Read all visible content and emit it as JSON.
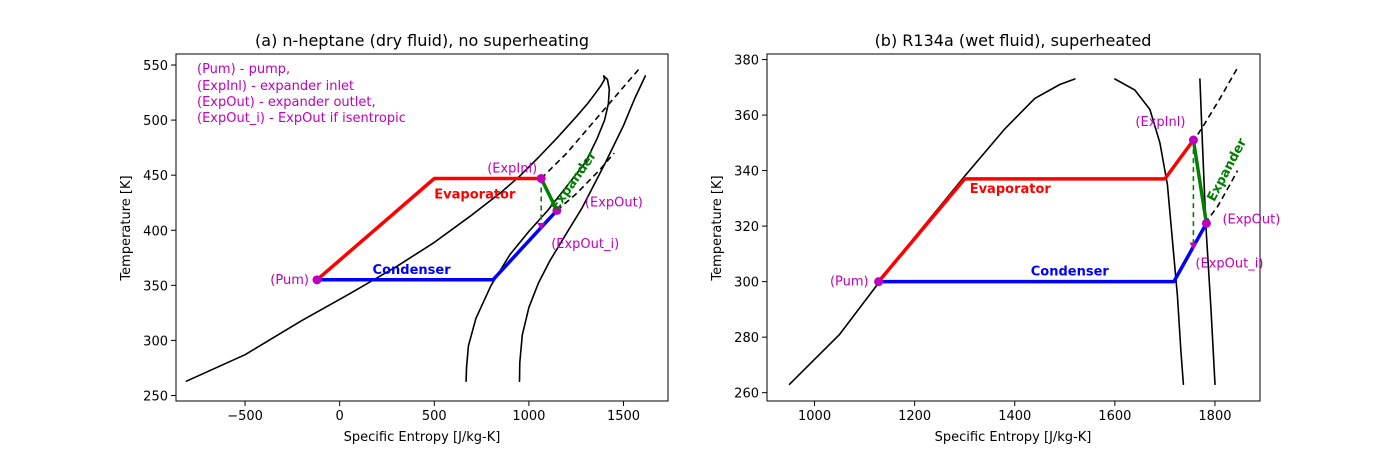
{
  "chart_data": [
    {
      "type": "line",
      "title": "(a) n-heptane (dry fluid), no superheating",
      "xlabel": "Specific Entropy [J/kg-K]",
      "ylabel": "Temperature [K]",
      "xlim": [
        -865,
        1735
      ],
      "ylim": [
        245,
        560
      ],
      "xticks": [
        -500,
        0,
        500,
        1000,
        1500
      ],
      "xtick_labels": [
        "−500",
        "0",
        "500",
        "1000",
        "1500"
      ],
      "yticks": [
        250,
        300,
        350,
        400,
        450,
        500,
        550
      ],
      "ytick_labels": [
        "250",
        "300",
        "350",
        "400",
        "450",
        "500",
        "550"
      ],
      "note_text": [
        "(Pum) - pump,",
        "(ExpInl) - expander inlet",
        "(ExpOut) - expander outlet,",
        "(ExpOut_i) - ExpOut if isentropic"
      ],
      "colors": {
        "curve": "#000000",
        "evaporator": "#ff0000",
        "condenser": "#0000ff",
        "expander": "#008000",
        "points": "#bf00bf"
      },
      "series": [
        {
          "kind": "dome_liquid",
          "x": [
            -810,
            -500,
            -200,
            50,
            300,
            500,
            700,
            850,
            950,
            1050,
            1150,
            1250,
            1310,
            1350,
            1380,
            1400,
            1395
          ],
          "y": [
            263,
            287,
            318,
            342,
            367,
            389,
            414,
            434,
            449,
            466,
            484,
            503,
            515,
            524,
            531,
            537,
            540
          ]
        },
        {
          "kind": "dome_vapor",
          "x": [
            1395,
            1415,
            1425,
            1420,
            1400,
            1360,
            1300,
            1200,
            1100,
            1000,
            900,
            800,
            720,
            680,
            670,
            668
          ],
          "y": [
            540,
            537,
            528,
            515,
            500,
            483,
            462,
            440,
            418,
            399,
            378,
            350,
            320,
            295,
            275,
            263
          ]
        },
        {
          "kind": "isobar_high",
          "style": "dashed",
          "x": [
            1065,
            1200,
            1350,
            1500,
            1590
          ],
          "y": [
            447,
            470,
            500,
            530,
            548
          ]
        },
        {
          "kind": "isobar_low",
          "style": "dashed",
          "x": [
            1148,
            1250,
            1370,
            1450
          ],
          "y": [
            418,
            433,
            454,
            470
          ]
        },
        {
          "kind": "isobar_low_solid",
          "x": [
            950,
            952,
            965,
            1000,
            1050,
            1110,
            1180,
            1280,
            1400,
            1500,
            1560,
            1615
          ],
          "y": [
            263,
            280,
            305,
            330,
            352,
            372,
            392,
            420,
            460,
            495,
            520,
            540
          ]
        },
        {
          "kind": "evaporator",
          "name": "Evaporator",
          "x": [
            -120,
            500,
            800,
            1065
          ],
          "y": [
            355,
            447,
            447,
            447
          ]
        },
        {
          "kind": "condenser",
          "name": "Condenser",
          "x": [
            -120,
            810,
            1148
          ],
          "y": [
            355,
            355,
            418
          ]
        },
        {
          "kind": "expander",
          "name": "Expander",
          "x": [
            1065,
            1148
          ],
          "y": [
            447,
            418
          ]
        },
        {
          "kind": "isentropic",
          "style": "dashed",
          "x": [
            1065,
            1065
          ],
          "y": [
            447,
            404
          ]
        }
      ],
      "points": [
        {
          "label": "(Pum)",
          "x": -120,
          "y": 355,
          "marker": "circle"
        },
        {
          "label": "(ExpInl)",
          "x": 1065,
          "y": 447,
          "marker": "circle"
        },
        {
          "label": "(ExpOut)",
          "x": 1148,
          "y": 418,
          "marker": "circle"
        },
        {
          "label": "(ExpOut_i)",
          "x": 1065,
          "y": 404,
          "marker": "triangle"
        }
      ]
    },
    {
      "type": "line",
      "title": "(b) R134a (wet fluid), superheated",
      "xlabel": "Specific Entropy [J/kg-K]",
      "ylabel": "Temperature [K]",
      "xlim": [
        905,
        1890
      ],
      "ylim": [
        257,
        382
      ],
      "xticks": [
        1000,
        1200,
        1400,
        1600,
        1800
      ],
      "xtick_labels": [
        "1000",
        "1200",
        "1400",
        "1600",
        "1800"
      ],
      "yticks": [
        260,
        280,
        300,
        320,
        340,
        360,
        380
      ],
      "ytick_labels": [
        "260",
        "280",
        "300",
        "320",
        "340",
        "360",
        "380"
      ],
      "colors": {
        "curve": "#000000",
        "evaporator": "#ff0000",
        "condenser": "#0000ff",
        "expander": "#008000",
        "points": "#bf00bf"
      },
      "series": [
        {
          "kind": "dome_liquid",
          "x": [
            950,
            1050,
            1130,
            1200,
            1300,
            1380,
            1440,
            1490,
            1520
          ],
          "y": [
            263,
            281,
            300,
            316,
            338,
            355,
            366,
            371,
            373
          ]
        },
        {
          "kind": "dome_vapor",
          "x": [
            1600,
            1640,
            1670,
            1690,
            1705,
            1715,
            1725,
            1732,
            1737
          ],
          "y": [
            373,
            369,
            362,
            350,
            335,
            315,
            295,
            275,
            263
          ]
        },
        {
          "kind": "isobar_high",
          "style": "dashed",
          "x": [
            1755,
            1780,
            1810,
            1845
          ],
          "y": [
            350,
            357,
            366,
            377
          ]
        },
        {
          "kind": "isobar_low",
          "style": "dashed",
          "x": [
            1780,
            1805,
            1830,
            1845
          ],
          "y": [
            321,
            327,
            335,
            340
          ]
        },
        {
          "kind": "isobar_low_solid",
          "x": [
            1770,
            1775,
            1782,
            1792,
            1800
          ],
          "y": [
            373,
            350,
            320,
            290,
            263
          ]
        },
        {
          "kind": "evaporator",
          "name": "Evaporator",
          "x": [
            1128,
            1300,
            1700,
            1757
          ],
          "y": [
            300,
            337,
            337,
            351
          ]
        },
        {
          "kind": "condenser",
          "name": "Condenser",
          "x": [
            1128,
            1718,
            1783
          ],
          "y": [
            300,
            300,
            321
          ]
        },
        {
          "kind": "expander",
          "name": "Expander",
          "x": [
            1757,
            1783
          ],
          "y": [
            351,
            321
          ]
        },
        {
          "kind": "isentropic",
          "style": "dashed",
          "x": [
            1757,
            1757
          ],
          "y": [
            351,
            313
          ]
        }
      ],
      "points": [
        {
          "label": "(Pum)",
          "x": 1128,
          "y": 300,
          "marker": "circle"
        },
        {
          "label": "(ExpInl)",
          "x": 1757,
          "y": 351,
          "marker": "circle"
        },
        {
          "label": "(ExpOut)",
          "x": 1783,
          "y": 321,
          "marker": "circle"
        },
        {
          "label": "(ExpOut_i)",
          "x": 1757,
          "y": 313,
          "marker": "triangle"
        }
      ]
    }
  ]
}
